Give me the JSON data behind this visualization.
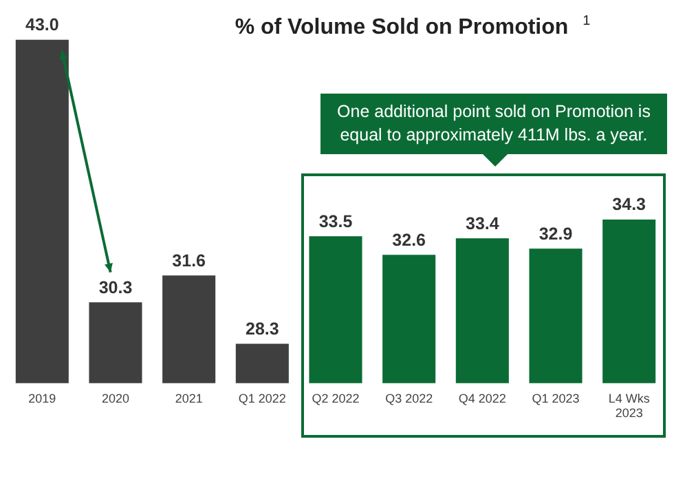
{
  "chart_data": {
    "type": "bar",
    "title": "% of Volume Sold on Promotion $^{1}$",
    "categories": [
      "2019",
      "2020",
      "2021",
      "Q1 2022",
      "Q2 2022",
      "Q3 2022",
      "Q4 2022",
      "Q1 2023",
      "L4 Wks 2023"
    ],
    "values": [
      43.0,
      30.3,
      31.6,
      28.3,
      33.5,
      32.6,
      33.4,
      32.9,
      34.3
    ],
    "colors": [
      "#3f3f3f",
      "#3f3f3f",
      "#3f3f3f",
      "#3f3f3f",
      "#0b6b35",
      "#0b6b35",
      "#0b6b35",
      "#0b6b35",
      "#0b6b35"
    ],
    "value_labels": [
      "43.0",
      "30.3",
      "31.6",
      "28.3",
      "33.5",
      "32.6",
      "33.4",
      "32.9",
      "34.3"
    ],
    "annotations": [
      "One additional point sold on Promotion is equal to approximately 411M lbs. a year."
    ],
    "legend": false,
    "grid": false
  }
}
